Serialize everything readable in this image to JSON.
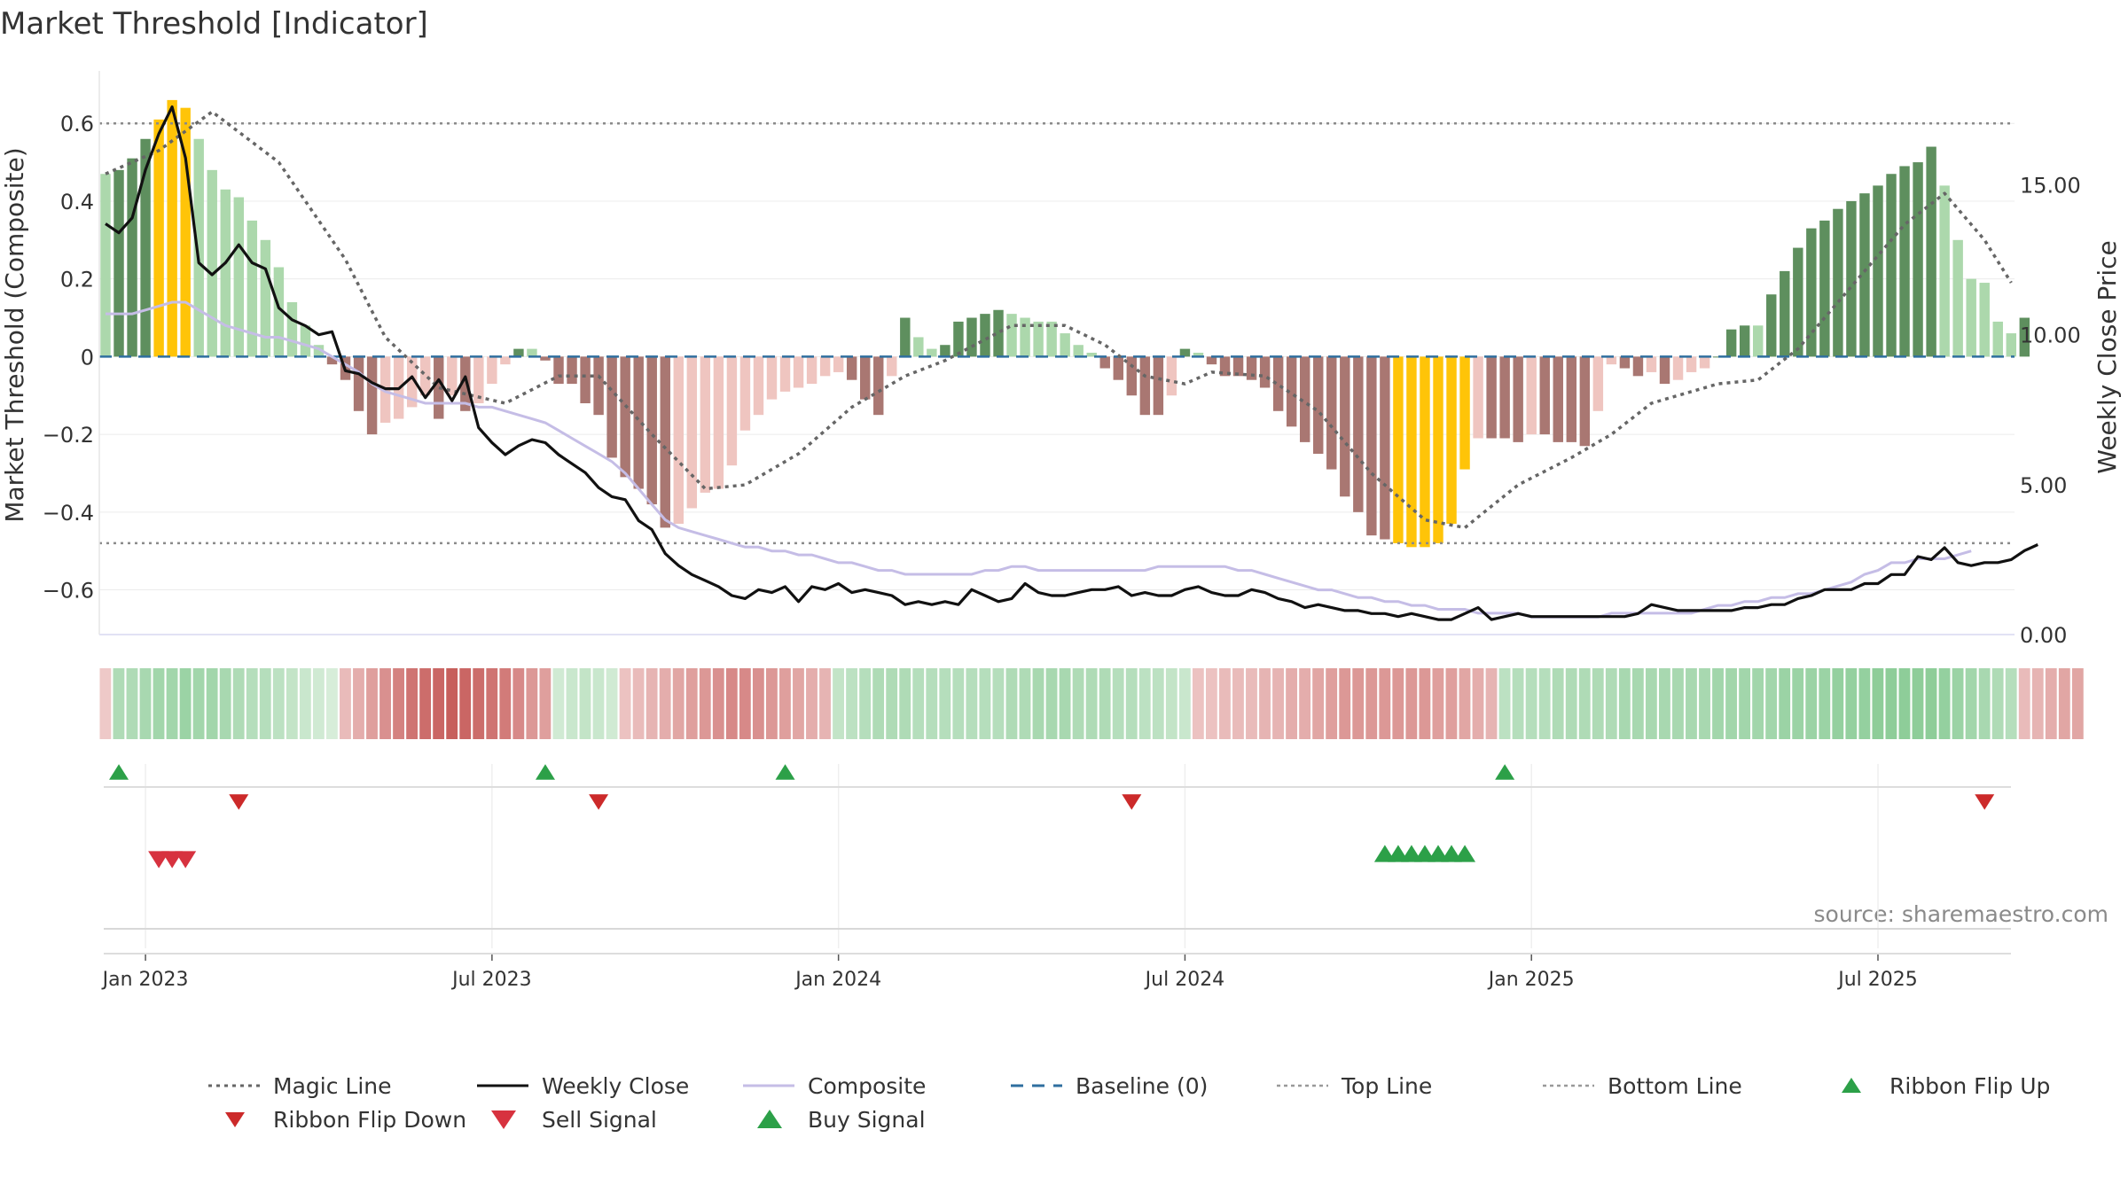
{
  "chart_data": {
    "type": "bar",
    "title": "Market Threshold [Indicator]",
    "ylabel_left": "Market Threshold (Composite)",
    "ylabel_right": "Weekly Close Price",
    "source": "source: sharemaestro.com",
    "left_axis": {
      "ylim": [
        -0.715,
        0.735
      ],
      "ticks": [
        {
          "value": 0.6,
          "label": "0.6"
        },
        {
          "value": 0.4,
          "label": "0.4"
        },
        {
          "value": 0.2,
          "label": "0.2"
        },
        {
          "value": 0.0,
          "label": "0"
        },
        {
          "value": -0.2,
          "label": "−0.2"
        },
        {
          "value": -0.4,
          "label": "−0.4"
        },
        {
          "value": -0.6,
          "label": "−0.6"
        }
      ]
    },
    "right_axis": {
      "ylim": [
        0.0,
        18.8
      ],
      "ticks": [
        {
          "value": 15,
          "label": "15.00"
        },
        {
          "value": 10,
          "label": "10.00"
        },
        {
          "value": 5,
          "label": "5.00"
        },
        {
          "value": 0,
          "label": "0.00"
        }
      ]
    },
    "x_ticks": [
      {
        "week": 3,
        "label": "Jan 2023"
      },
      {
        "week": 29,
        "label": "Jul 2023"
      },
      {
        "week": 55,
        "label": "Jan 2024"
      },
      {
        "week": 81,
        "label": "Jul 2024"
      },
      {
        "week": 107,
        "label": "Jan 2025"
      },
      {
        "week": 133,
        "label": "Jul 2025"
      }
    ],
    "top_line": 0.6,
    "bottom_line": -0.48,
    "baseline": 0,
    "colors": {
      "pos_strong": "#5e8f5e",
      "pos_weak": "#acd8ac",
      "neg_strong": "#a97772",
      "neg_weak": "#efc5c0",
      "extreme": "#ffc408",
      "weekly_close": "#111111",
      "composite": "#c5bde6",
      "magic_line": "#666666",
      "baseline": "#2f6f9f",
      "buy": "#2ca048",
      "sell": "#d7323f"
    },
    "composite_bars": [
      0.47,
      0.48,
      0.51,
      0.56,
      0.61,
      0.66,
      0.64,
      0.56,
      0.48,
      0.43,
      0.41,
      0.35,
      0.3,
      0.23,
      0.14,
      0.08,
      0.03,
      -0.02,
      -0.06,
      -0.14,
      -0.2,
      -0.17,
      -0.16,
      -0.13,
      -0.1,
      -0.16,
      -0.1,
      -0.14,
      -0.12,
      -0.07,
      -0.02,
      0.02,
      0.02,
      -0.01,
      -0.07,
      -0.07,
      -0.12,
      -0.15,
      -0.26,
      -0.31,
      -0.34,
      -0.38,
      -0.44,
      -0.43,
      -0.39,
      -0.35,
      -0.34,
      -0.28,
      -0.19,
      -0.15,
      -0.11,
      -0.09,
      -0.08,
      -0.07,
      -0.05,
      -0.04,
      -0.06,
      -0.11,
      -0.15,
      -0.05,
      0.1,
      0.05,
      0.02,
      0.03,
      0.09,
      0.1,
      0.11,
      0.12,
      0.11,
      0.1,
      0.09,
      0.09,
      0.06,
      0.03,
      0.01,
      -0.03,
      -0.06,
      -0.1,
      -0.15,
      -0.15,
      -0.1,
      0.02,
      0.01,
      -0.02,
      -0.05,
      -0.05,
      -0.06,
      -0.08,
      -0.14,
      -0.18,
      -0.22,
      -0.25,
      -0.29,
      -0.36,
      -0.4,
      -0.46,
      -0.47,
      -0.48,
      -0.49,
      -0.49,
      -0.48,
      -0.43,
      -0.29,
      -0.21,
      -0.21,
      -0.21,
      -0.22,
      -0.2,
      -0.2,
      -0.22,
      -0.22,
      -0.23,
      -0.14,
      -0.02,
      -0.03,
      -0.05,
      -0.04,
      -0.07,
      -0.06,
      -0.04,
      -0.03,
      0.0,
      0.07,
      0.08,
      0.08,
      0.16,
      0.22,
      0.28,
      0.33,
      0.35,
      0.38,
      0.4,
      0.42,
      0.44,
      0.47,
      0.49,
      0.5,
      0.54,
      0.44,
      0.3,
      0.2,
      0.19,
      0.09,
      0.06,
      0.1
    ],
    "weekly_close": [
      13.7,
      13.4,
      13.9,
      15.5,
      16.7,
      17.6,
      15.9,
      12.4,
      12.0,
      12.4,
      13.0,
      12.4,
      12.2,
      10.9,
      10.5,
      10.3,
      10.0,
      10.1,
      8.8,
      8.7,
      8.4,
      8.2,
      8.2,
      8.6,
      7.9,
      8.5,
      7.8,
      8.6,
      6.9,
      6.4,
      6.0,
      6.3,
      6.5,
      6.4,
      6.0,
      5.7,
      5.4,
      4.9,
      4.6,
      4.5,
      3.8,
      3.5,
      2.7,
      2.3,
      2.0,
      1.8,
      1.6,
      1.3,
      1.2,
      1.5,
      1.4,
      1.6,
      1.1,
      1.6,
      1.5,
      1.7,
      1.4,
      1.5,
      1.4,
      1.3,
      1.0,
      1.1,
      1.0,
      1.1,
      1.0,
      1.5,
      1.3,
      1.1,
      1.2,
      1.7,
      1.4,
      1.3,
      1.3,
      1.4,
      1.5,
      1.5,
      1.6,
      1.3,
      1.4,
      1.3,
      1.3,
      1.5,
      1.6,
      1.4,
      1.3,
      1.3,
      1.5,
      1.4,
      1.2,
      1.1,
      0.9,
      1.0,
      0.9,
      0.8,
      0.8,
      0.7,
      0.7,
      0.6,
      0.7,
      0.6,
      0.5,
      0.5,
      0.7,
      0.9,
      0.5,
      0.6,
      0.7,
      0.6,
      0.6,
      0.6,
      0.6,
      0.6,
      0.6,
      0.6,
      0.6,
      0.7,
      1.0,
      0.9,
      0.8,
      0.8,
      0.8,
      0.8,
      0.8,
      0.9,
      0.9,
      1.0,
      1.0,
      1.2,
      1.3,
      1.5,
      1.5,
      1.5,
      1.7,
      1.7,
      2.0,
      2.0,
      2.6,
      2.5,
      2.9,
      2.4,
      2.3,
      2.4,
      2.4,
      2.5,
      2.8,
      3.0
    ],
    "composite_line": [
      0.11,
      0.11,
      0.11,
      0.12,
      0.13,
      0.14,
      0.14,
      0.12,
      0.1,
      0.08,
      0.07,
      0.06,
      0.05,
      0.05,
      0.04,
      0.03,
      0.02,
      0.0,
      -0.02,
      -0.04,
      -0.07,
      -0.09,
      -0.1,
      -0.11,
      -0.12,
      -0.12,
      -0.12,
      -0.12,
      -0.13,
      -0.13,
      -0.14,
      -0.15,
      -0.16,
      -0.17,
      -0.19,
      -0.21,
      -0.23,
      -0.25,
      -0.27,
      -0.3,
      -0.34,
      -0.38,
      -0.42,
      -0.44,
      -0.45,
      -0.46,
      -0.47,
      -0.48,
      -0.49,
      -0.49,
      -0.5,
      -0.5,
      -0.51,
      -0.51,
      -0.52,
      -0.53,
      -0.53,
      -0.54,
      -0.55,
      -0.55,
      -0.56,
      -0.56,
      -0.56,
      -0.56,
      -0.56,
      -0.56,
      -0.55,
      -0.55,
      -0.54,
      -0.54,
      -0.55,
      -0.55,
      -0.55,
      -0.55,
      -0.55,
      -0.55,
      -0.55,
      -0.55,
      -0.55,
      -0.54,
      -0.54,
      -0.54,
      -0.54,
      -0.54,
      -0.54,
      -0.55,
      -0.55,
      -0.56,
      -0.57,
      -0.58,
      -0.59,
      -0.6,
      -0.6,
      -0.61,
      -0.62,
      -0.62,
      -0.63,
      -0.63,
      -0.64,
      -0.64,
      -0.65,
      -0.65,
      -0.65,
      -0.66,
      -0.66,
      -0.66,
      -0.66,
      -0.67,
      -0.67,
      -0.67,
      -0.67,
      -0.67,
      -0.67,
      -0.66,
      -0.66,
      -0.66,
      -0.66,
      -0.66,
      -0.66,
      -0.66,
      -0.65,
      -0.64,
      -0.64,
      -0.63,
      -0.63,
      -0.62,
      -0.62,
      -0.61,
      -0.61,
      -0.6,
      -0.59,
      -0.58,
      -0.56,
      -0.55,
      -0.53,
      -0.53,
      -0.52,
      -0.52,
      -0.52,
      -0.51,
      -0.5
    ],
    "magic_line": [
      [
        0,
        0.47
      ],
      [
        4,
        0.53
      ],
      [
        8,
        0.63
      ],
      [
        13,
        0.5
      ],
      [
        18,
        0.25
      ],
      [
        21,
        0.05
      ],
      [
        25,
        -0.08
      ],
      [
        30,
        -0.12
      ],
      [
        34,
        -0.05
      ],
      [
        37,
        -0.05
      ],
      [
        41,
        -0.2
      ],
      [
        45,
        -0.34
      ],
      [
        48,
        -0.33
      ],
      [
        52,
        -0.25
      ],
      [
        56,
        -0.13
      ],
      [
        60,
        -0.05
      ],
      [
        63,
        -0.01
      ],
      [
        68,
        0.08
      ],
      [
        72,
        0.08
      ],
      [
        75,
        0.03
      ],
      [
        78,
        -0.05
      ],
      [
        81,
        -0.07
      ],
      [
        83,
        -0.04
      ],
      [
        87,
        -0.05
      ],
      [
        91,
        -0.14
      ],
      [
        95,
        -0.3
      ],
      [
        99,
        -0.42
      ],
      [
        102,
        -0.44
      ],
      [
        106,
        -0.33
      ],
      [
        110,
        -0.26
      ],
      [
        113,
        -0.2
      ],
      [
        116,
        -0.12
      ],
      [
        121,
        -0.07
      ],
      [
        124,
        -0.06
      ],
      [
        127,
        0.02
      ],
      [
        131,
        0.18
      ],
      [
        135,
        0.34
      ],
      [
        138,
        0.42
      ],
      [
        141,
        0.3
      ],
      [
        143,
        0.19
      ]
    ],
    "ribbon": [
      -0.15,
      0.4,
      0.4,
      0.45,
      0.5,
      0.5,
      0.55,
      0.5,
      0.5,
      0.45,
      0.4,
      0.35,
      0.35,
      0.3,
      0.25,
      0.2,
      0.15,
      0.1,
      -0.25,
      -0.35,
      -0.45,
      -0.55,
      -0.65,
      -0.75,
      -0.8,
      -0.85,
      -0.9,
      -0.85,
      -0.8,
      -0.75,
      -0.7,
      -0.6,
      -0.5,
      -0.45,
      0.15,
      0.2,
      0.25,
      0.2,
      0.15,
      -0.2,
      -0.25,
      -0.3,
      -0.35,
      -0.4,
      -0.45,
      -0.5,
      -0.55,
      -0.6,
      -0.6,
      -0.55,
      -0.5,
      -0.45,
      -0.4,
      -0.35,
      -0.3,
      0.25,
      0.3,
      0.35,
      0.4,
      0.4,
      0.4,
      0.35,
      0.35,
      0.35,
      0.35,
      0.35,
      0.35,
      0.35,
      0.4,
      0.4,
      0.45,
      0.45,
      0.45,
      0.4,
      0.4,
      0.4,
      0.35,
      0.35,
      0.3,
      0.3,
      0.25,
      0.2,
      -0.2,
      -0.2,
      -0.25,
      -0.25,
      -0.25,
      -0.3,
      -0.3,
      -0.35,
      -0.35,
      -0.4,
      -0.45,
      -0.5,
      -0.5,
      -0.5,
      -0.5,
      -0.5,
      -0.5,
      -0.5,
      -0.45,
      -0.45,
      -0.4,
      -0.35,
      -0.3,
      0.3,
      0.35,
      0.35,
      0.35,
      0.4,
      0.4,
      0.4,
      0.4,
      0.4,
      0.45,
      0.45,
      0.45,
      0.45,
      0.45,
      0.45,
      0.45,
      0.5,
      0.5,
      0.5,
      0.5,
      0.5,
      0.55,
      0.55,
      0.55,
      0.55,
      0.6,
      0.6,
      0.6,
      0.65,
      0.65,
      0.65,
      0.65,
      0.65,
      0.6,
      0.55,
      0.5,
      0.45,
      0.4,
      0.35,
      -0.25,
      -0.3,
      -0.35,
      -0.4,
      -0.4
    ],
    "ribbon_flip_up": [
      1,
      33,
      51,
      105
    ],
    "ribbon_flip_down": [
      10,
      37,
      77,
      141
    ],
    "sell_signal": [
      4,
      5,
      6
    ],
    "buy_signal": [
      96,
      97,
      98,
      99,
      100,
      101,
      102
    ],
    "legend": [
      {
        "label": "Magic Line",
        "type": "dotted"
      },
      {
        "label": "Weekly Close",
        "type": "solid"
      },
      {
        "label": "Composite",
        "type": "lavender"
      },
      {
        "label": "Baseline (0)",
        "type": "dashed"
      },
      {
        "label": "Top Line",
        "type": "gray-dotted"
      },
      {
        "label": "Bottom Line",
        "type": "gray-dotted"
      },
      {
        "label": "Ribbon Flip Up",
        "type": "tri-up"
      },
      {
        "label": "Ribbon Flip Down",
        "type": "tri-down"
      },
      {
        "label": "Sell Signal",
        "type": "sell"
      },
      {
        "label": "Buy Signal",
        "type": "buy"
      }
    ]
  }
}
